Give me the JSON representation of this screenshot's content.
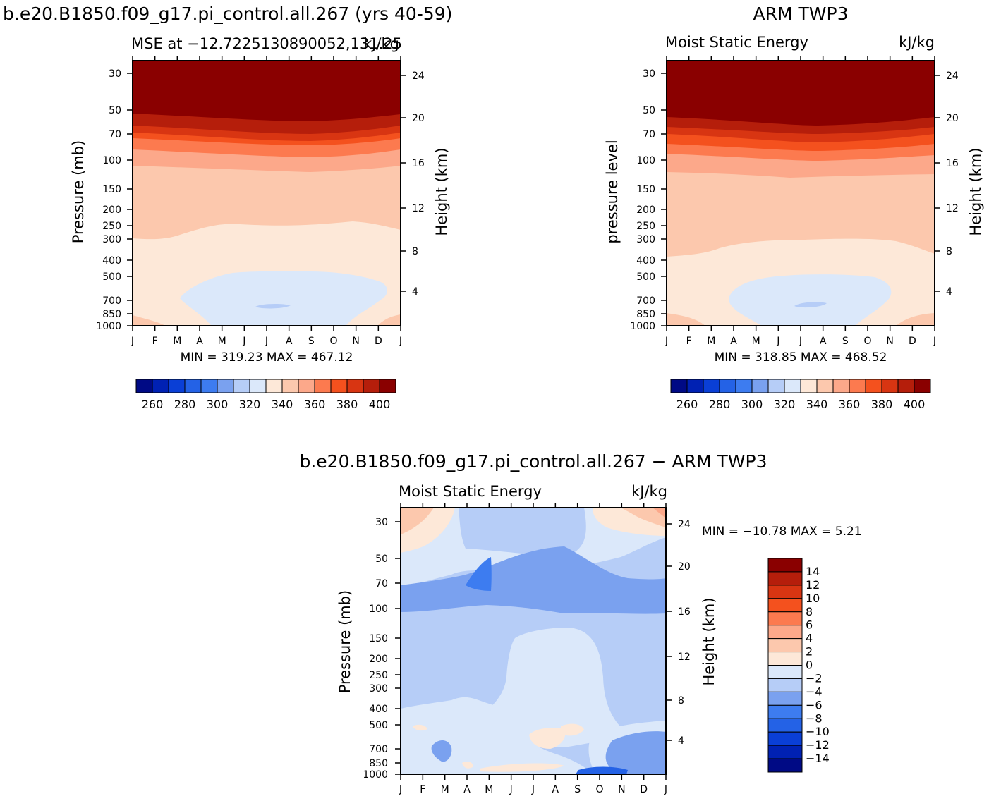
{
  "figure": {
    "panels": [
      {
        "title": "b.e20.B1850.f09_g17.pi_control.all.267 (yrs 40-59)",
        "left_label": "MSE at −12.7225130890052,131.25",
        "right_label": "kJ/kg",
        "ylabel_left": "Pressure (mb)",
        "ylabel_right": "Height (km)",
        "minmax": "MIN = 319.23  MAX = 467.12"
      },
      {
        "title": "ARM TWP3",
        "left_label": "Moist Static Energy",
        "right_label": "kJ/kg",
        "ylabel_left": "pressure level",
        "ylabel_right": "Height (km)",
        "minmax": "MIN = 318.85  MAX = 468.52"
      },
      {
        "title": "b.e20.B1850.f09_g17.pi_control.all.267 − ARM TWP3",
        "left_label": "Moist Static Energy",
        "right_label": "kJ/kg",
        "ylabel_left": "Pressure (mb)",
        "ylabel_right": "Height (km)",
        "minmax": "MIN = −10.78  MAX =    5.21"
      }
    ],
    "colorbar_mse_labels": [
      "260",
      "280",
      "300",
      "320",
      "340",
      "360",
      "380",
      "400"
    ],
    "colorbar_diff_labels": [
      "14",
      "12",
      "10",
      "8",
      "6",
      "4",
      "2",
      "0",
      "−2",
      "−4",
      "−6",
      "−8",
      "−10",
      "−12",
      "−14"
    ]
  },
  "chart_data": [
    {
      "type": "heatmap",
      "title": "b.e20.B1850.f09_g17.pi_control.all.267 (yrs 40-59)",
      "subtitle": "MSE at −12.7225130890052,131.25",
      "units": "kJ/kg",
      "xlabel": "",
      "ylabel": "Pressure (mb)",
      "ylabel_right": "Height (km)",
      "x_ticks": [
        "J",
        "F",
        "M",
        "A",
        "M",
        "J",
        "J",
        "A",
        "S",
        "O",
        "N",
        "D",
        "J"
      ],
      "y_ticks": [
        30,
        50,
        70,
        100,
        150,
        200,
        250,
        300,
        400,
        500,
        700,
        850,
        1000
      ],
      "y_right_ticks": [
        4,
        8,
        12,
        16,
        20,
        24
      ],
      "y_scale": "log",
      "ylim": [
        1000,
        20
      ],
      "contour_levels": [
        260,
        270,
        280,
        290,
        300,
        310,
        320,
        330,
        340,
        350,
        360,
        370,
        380,
        390,
        400
      ],
      "min": 319.23,
      "max": 467.12,
      "approx_band_tops_mb_by_month": {
        "months": [
          "J",
          "F",
          "M",
          "A",
          "M",
          "J",
          "J",
          "A",
          "S",
          "O",
          "N",
          "D",
          "J"
        ],
        "lt330_region_top": [
          null,
          null,
          550,
          520,
          500,
          490,
          480,
          480,
          480,
          490,
          510,
          560,
          null
        ],
        "330_340_top": [
          300,
          300,
          290,
          275,
          255,
          260,
          265,
          260,
          255,
          250,
          265,
          280,
          285
        ],
        "340_350_top": [
          108,
          107,
          107,
          108,
          110,
          112,
          112,
          112,
          110,
          108,
          107,
          106,
          106
        ],
        "350_360_top": [
          86,
          87,
          88,
          90,
          92,
          94,
          95,
          94,
          93,
          91,
          89,
          87,
          86
        ],
        "360_370_top": [
          72,
          73,
          74,
          76,
          78,
          80,
          80,
          80,
          79,
          77,
          75,
          73,
          72
        ],
        "370_380_top": [
          62,
          63,
          64,
          65,
          66,
          67,
          68,
          68,
          67,
          66,
          65,
          63,
          62
        ],
        "380_400_top": [
          54,
          55,
          56,
          57,
          58,
          59,
          60,
          60,
          59,
          58,
          57,
          55,
          54
        ],
        "gt400_top": [
          20,
          20,
          20,
          20,
          20,
          20,
          20,
          20,
          20,
          20,
          20,
          20,
          20
        ]
      }
    },
    {
      "type": "heatmap",
      "title": "ARM TWP3",
      "subtitle": "Moist Static Energy",
      "units": "kJ/kg",
      "xlabel": "",
      "ylabel": "pressure level",
      "ylabel_right": "Height (km)",
      "x_ticks": [
        "J",
        "F",
        "M",
        "A",
        "M",
        "J",
        "J",
        "A",
        "S",
        "O",
        "N",
        "D",
        "J"
      ],
      "y_ticks": [
        30,
        50,
        70,
        100,
        150,
        200,
        250,
        300,
        400,
        500,
        700,
        850,
        1000
      ],
      "y_right_ticks": [
        4,
        8,
        12,
        16,
        20,
        24
      ],
      "y_scale": "log",
      "ylim": [
        1000,
        20
      ],
      "contour_levels": [
        260,
        270,
        280,
        290,
        300,
        310,
        320,
        330,
        340,
        350,
        360,
        370,
        380,
        390,
        400
      ],
      "min": 318.85,
      "max": 468.52
    },
    {
      "type": "heatmap",
      "title": "b.e20.B1850.f09_g17.pi_control.all.267 − ARM TWP3",
      "subtitle": "Moist Static Energy",
      "units": "kJ/kg",
      "xlabel": "",
      "ylabel": "Pressure (mb)",
      "ylabel_right": "Height (km)",
      "x_ticks": [
        "J",
        "F",
        "M",
        "A",
        "M",
        "J",
        "J",
        "A",
        "S",
        "O",
        "N",
        "D",
        "J"
      ],
      "y_ticks": [
        30,
        50,
        70,
        100,
        150,
        200,
        250,
        300,
        400,
        500,
        700,
        850,
        1000
      ],
      "y_right_ticks": [
        4,
        8,
        12,
        16,
        20,
        24
      ],
      "y_scale": "log",
      "ylim": [
        1000,
        20
      ],
      "contour_levels": [
        -14,
        -12,
        -10,
        -8,
        -6,
        -4,
        -2,
        0,
        2,
        4,
        6,
        8,
        10,
        12,
        14
      ],
      "min": -10.78,
      "max": 5.21
    }
  ],
  "colors": {
    "mse_palette": [
      "#000a85",
      "#0021b3",
      "#0a3fd6",
      "#2462e6",
      "#3d7cf0",
      "#7aa1ef",
      "#b6cdf7",
      "#dbe8fa",
      "#fde8d8",
      "#fcc8ad",
      "#fca88a",
      "#fc7a4f",
      "#f4511e",
      "#d83512",
      "#b51e0b",
      "#8a0000"
    ],
    "diff_palette": [
      "#8a0000",
      "#b51e0b",
      "#d83512",
      "#f4511e",
      "#fc7a4f",
      "#fca88a",
      "#fcc8ad",
      "#fde8d8",
      "#dbe8fa",
      "#b6cdf7",
      "#7aa1ef",
      "#3d7cf0",
      "#2462e6",
      "#0a3fd6",
      "#0021b3",
      "#000a85"
    ]
  }
}
